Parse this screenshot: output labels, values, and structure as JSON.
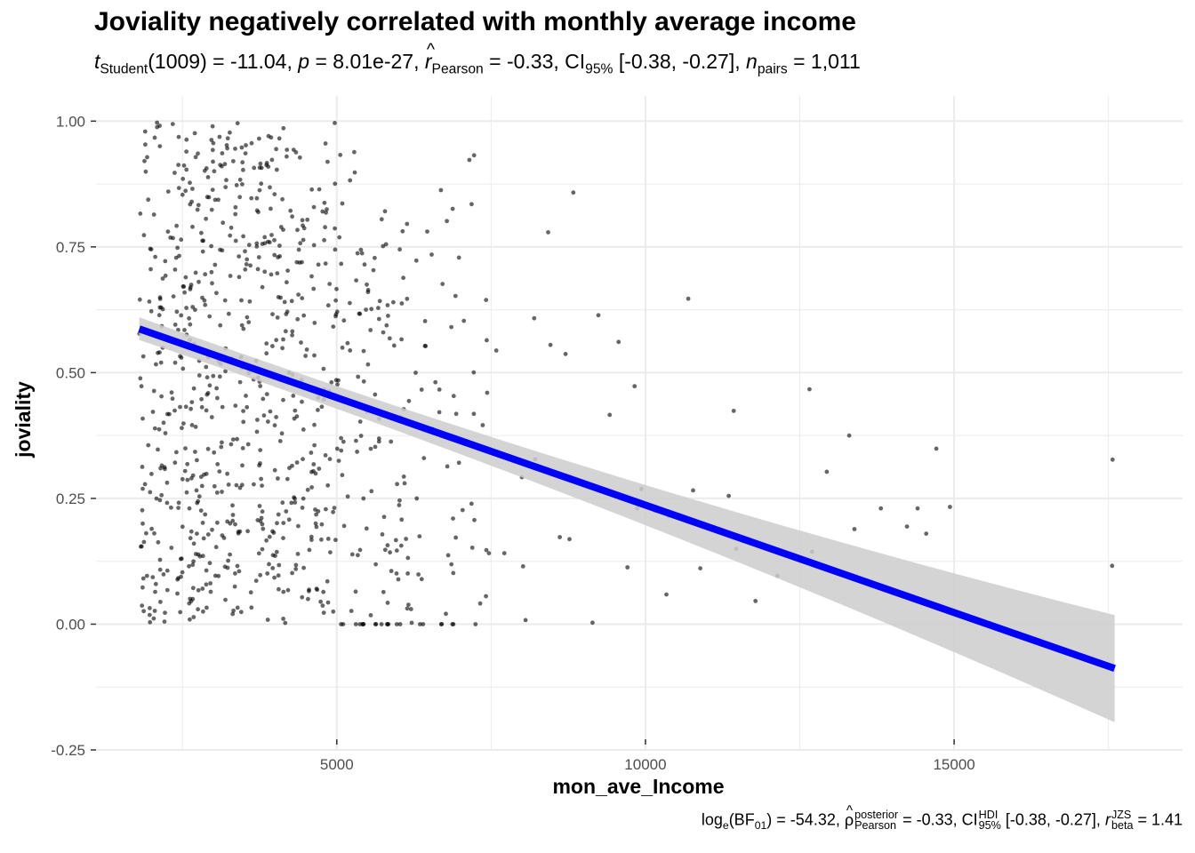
{
  "chart_data": {
    "type": "scatter",
    "title": "Joviality negatively correlated with monthly average income",
    "subtitle": {
      "t_symbol": "t",
      "t_sub": "Student",
      "t_text": "(1009) = -11.04, ",
      "p_symbol": "p",
      "p_text": " = 8.01e-27, ",
      "r_symbol": "r",
      "r_sub": "Pearson",
      "r_text": " = -0.33, CI",
      "ci_sub": "95%",
      "ci_text": " [-0.38, -0.27], ",
      "n_symbol": "n",
      "n_sub": "pairs",
      "n_text": " = 1,011"
    },
    "caption": {
      "log_text": "log",
      "log_sub": "e",
      "bf_text": "(BF",
      "bf_sub": "01",
      "bf_value": ") = -54.32, ",
      "rho_symbol": "ρ",
      "rho_sup": "posterior",
      "rho_sub": "Pearson",
      "rho_value": " = -0.33, CI",
      "hdi_sup": "HDI",
      "hdi_sub": "95%",
      "hdi_value": " [-0.38, -0.27], ",
      "rbeta_symbol": "r",
      "rbeta_sup": "JZS",
      "rbeta_sub": "beta",
      "rbeta_value": " = 1.41"
    },
    "xlabel": "mon_ave_Income",
    "ylabel": "joviality",
    "xlim": [
      1100,
      18700
    ],
    "ylim": [
      -0.25,
      1.05
    ],
    "x_ticks": [
      5000,
      10000,
      15000
    ],
    "x_tick_labels": [
      "5000",
      "10000",
      "15000"
    ],
    "y_ticks": [
      -0.25,
      0,
      0.25,
      0.5,
      0.75,
      1
    ],
    "y_tick_labels": [
      "-0.25",
      "0.00",
      "0.25",
      "0.50",
      "0.75",
      "1.00"
    ],
    "grid": true,
    "point_color": "#000000",
    "point_opacity": 0.6,
    "fit": {
      "x_start": 1800,
      "y_start": 0.587,
      "x_end": 17600,
      "y_end": -0.088,
      "ci_low": [
        0.565,
        -0.195
      ],
      "ci_high": [
        0.61,
        0.018
      ],
      "color": "#0000ff",
      "band_color": "#cccccc"
    },
    "points_sampled": [
      [
        8424,
        0.779
      ],
      [
        8831,
        0.858
      ],
      [
        7224,
        0.932
      ],
      [
        10694,
        0.647
      ],
      [
        9237,
        0.614
      ],
      [
        9564,
        0.561
      ],
      [
        12656,
        0.467
      ],
      [
        11430,
        0.424
      ],
      [
        13301,
        0.375
      ],
      [
        14712,
        0.349
      ],
      [
        17567,
        0.327
      ],
      [
        12938,
        0.303
      ],
      [
        9934,
        0.269
      ],
      [
        10772,
        0.266
      ],
      [
        11349,
        0.255
      ],
      [
        13813,
        0.23
      ],
      [
        14408,
        0.23
      ],
      [
        14932,
        0.233
      ],
      [
        14236,
        0.194
      ],
      [
        13386,
        0.189
      ],
      [
        14548,
        0.18
      ],
      [
        11470,
        0.15
      ],
      [
        12700,
        0.144
      ],
      [
        17560,
        0.116
      ],
      [
        12138,
        0.096
      ],
      [
        10888,
        0.111
      ],
      [
        10339,
        0.059
      ],
      [
        11783,
        0.046
      ],
      [
        9142,
        0.003
      ],
      [
        9709,
        0.113
      ],
      [
        8058,
        0.008
      ],
      [
        8770,
        0.169
      ],
      [
        8613,
        0.173
      ],
      [
        8215,
        0.328
      ],
      [
        7999,
        0.292
      ],
      [
        7584,
        0.544
      ],
      [
        8197,
        0.608
      ],
      [
        9420,
        0.416
      ],
      [
        9823,
        0.473
      ],
      [
        10158,
        0.225
      ],
      [
        7323,
        0.041
      ],
      [
        7713,
        0.141
      ],
      [
        7464,
        0.141
      ],
      [
        8017,
        0.115
      ],
      [
        7058,
        0.603
      ],
      [
        6935,
        0.418
      ],
      [
        7220,
        0.418
      ],
      [
        6805,
        0.137
      ],
      [
        6883,
        0.21
      ],
      [
        7228,
        0.207
      ],
      [
        7436,
        0.46
      ],
      [
        8461,
        0.555
      ],
      [
        8706,
        0.537
      ],
      [
        9868,
        0.23
      ],
      [
        10377,
        0.215
      ]
    ]
  }
}
